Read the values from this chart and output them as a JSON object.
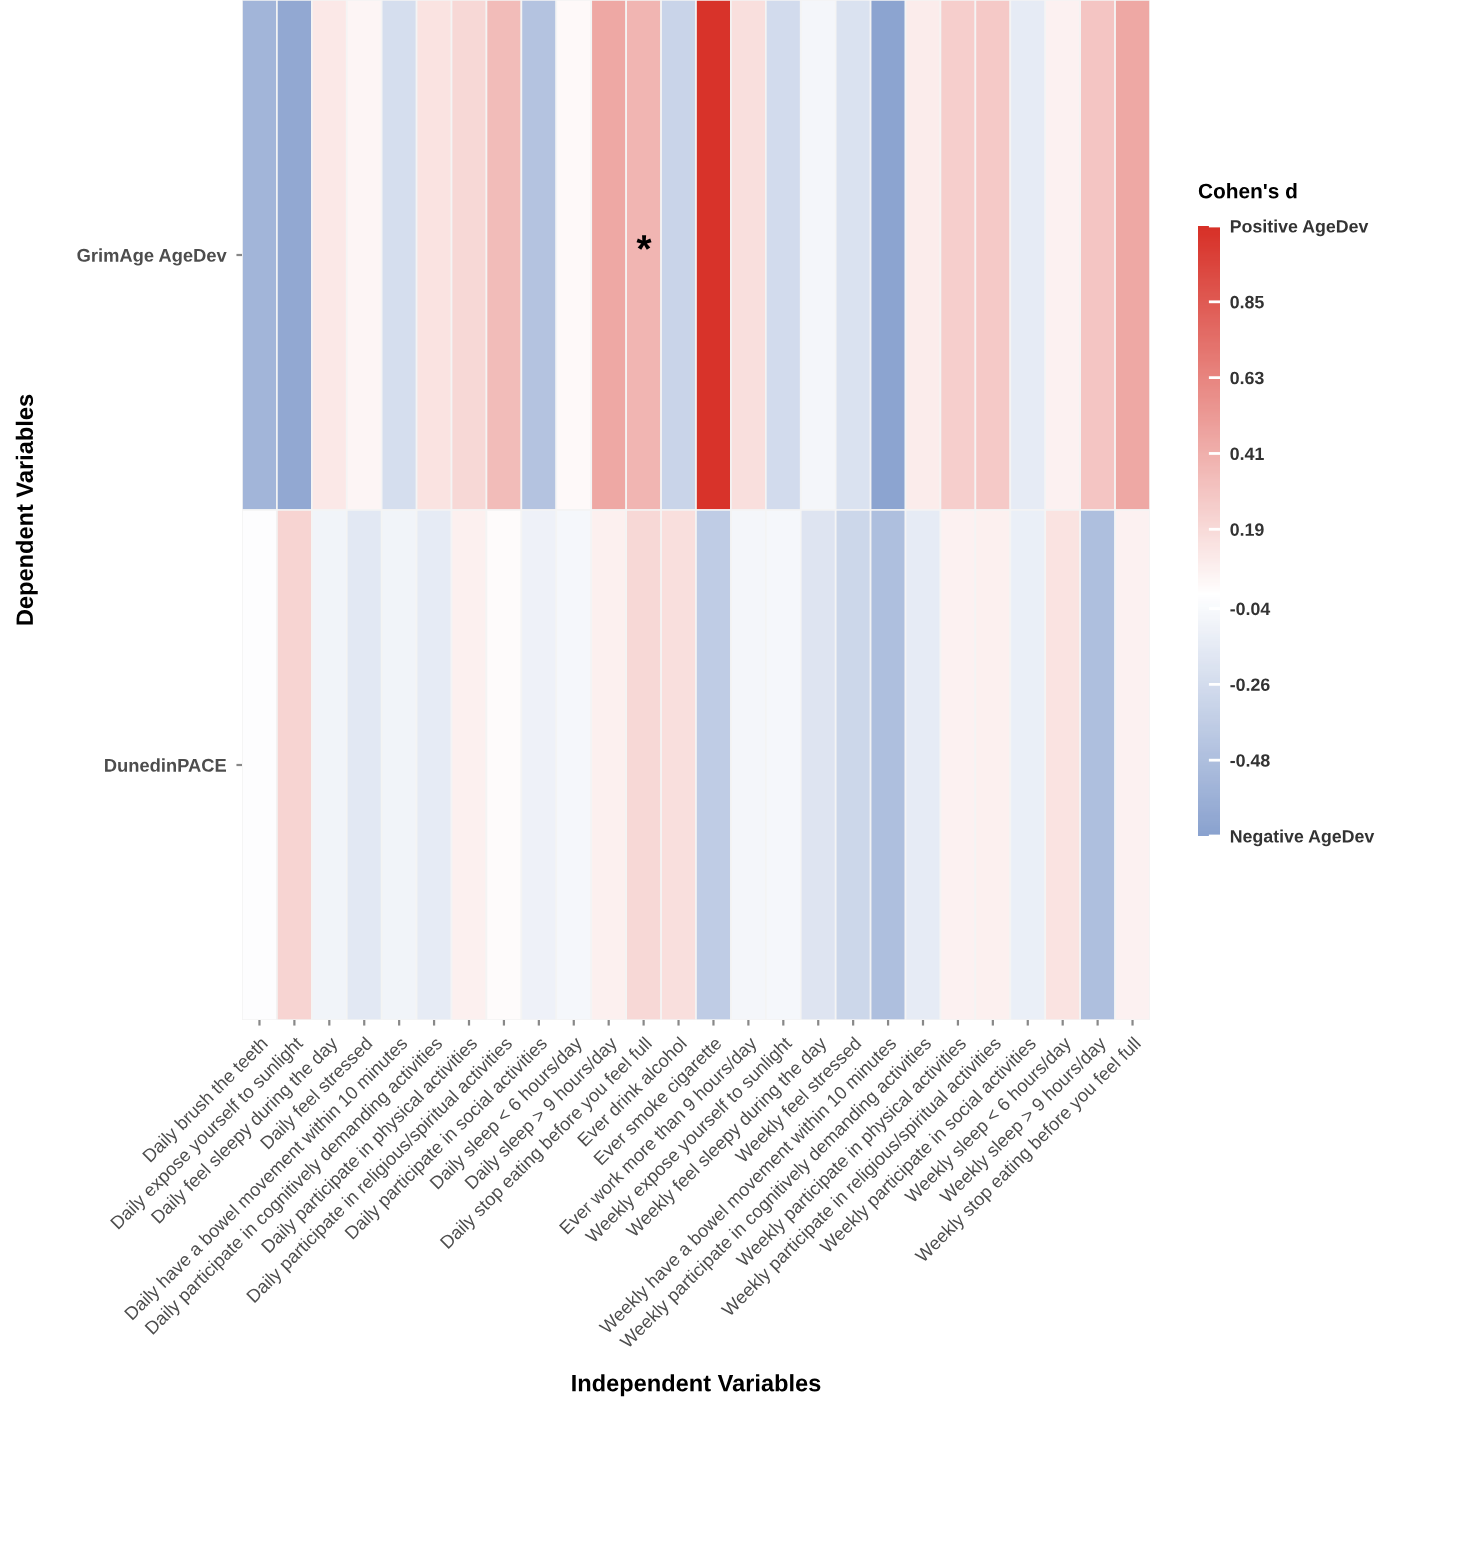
{
  "chart_data": {
    "type": "heatmap",
    "xlabel": "Independent Variables",
    "ylabel": "Dependent Variables",
    "clabel": "Cohen's d",
    "categories": [
      "Daily brush the teeth",
      "Daily expose yourself to sunlight",
      "Daily feel sleepy during the day",
      "Daily feel stressed",
      "Daily have a bowel movement within 10 minutes",
      "Daily participate in cognitively demanding activities",
      "Daily participate in physical activities",
      "Daily participate in religious/spiritual activities",
      "Daily participate in social activities",
      "Daily sleep < 6 hours/day",
      "Daily sleep > 9 hours/day",
      "Daily stop eating before you feel full",
      "Ever drink alcohol",
      "Ever smoke cigarette",
      "Ever work more than 9 hours/day",
      "Weekly expose yourself to sunlight",
      "Weekly feel sleepy during the day",
      "Weekly feel stressed",
      "Weekly have a bowel movement within 10 minutes",
      "Weekly participate in cognitively demanding activities",
      "Weekly participate in physical activities",
      "Weekly participate in religious/spiritual activities",
      "Weekly participate in social activities",
      "Weekly sleep < 6 hours/day",
      "Weekly sleep > 9 hours/day",
      "Weekly stop eating before you feel full"
    ],
    "y_categories": [
      "GrimAge AgeDev",
      "DunedinPACE"
    ],
    "cells": [
      [
        -0.55,
        -0.65,
        0.12,
        0.05,
        -0.25,
        0.15,
        0.2,
        0.35,
        -0.45,
        0.03,
        0.45,
        0.38,
        -0.32,
        1.05,
        0.17,
        -0.27,
        -0.07,
        -0.22,
        -0.68,
        0.1,
        0.25,
        0.28,
        -0.15,
        0.07,
        0.3,
        0.45
      ],
      [
        -0.01,
        0.22,
        -0.08,
        -0.17,
        -0.08,
        -0.15,
        0.08,
        0.02,
        -0.1,
        -0.06,
        0.08,
        0.2,
        0.17,
        -0.38,
        -0.07,
        -0.06,
        -0.2,
        -0.3,
        -0.48,
        -0.15,
        0.07,
        0.08,
        -0.12,
        0.15,
        -0.48,
        0.07
      ]
    ],
    "clim": [
      -0.7,
      1.07
    ],
    "cticks": [
      {
        "value": -0.7,
        "label": "Negative AgeDev"
      },
      -0.48,
      -0.26,
      -0.04,
      0.19,
      0.41,
      0.63,
      0.85,
      {
        "value": 1.07,
        "label": "Positive AgeDev"
      }
    ],
    "annotations": [
      "*"
    ]
  }
}
